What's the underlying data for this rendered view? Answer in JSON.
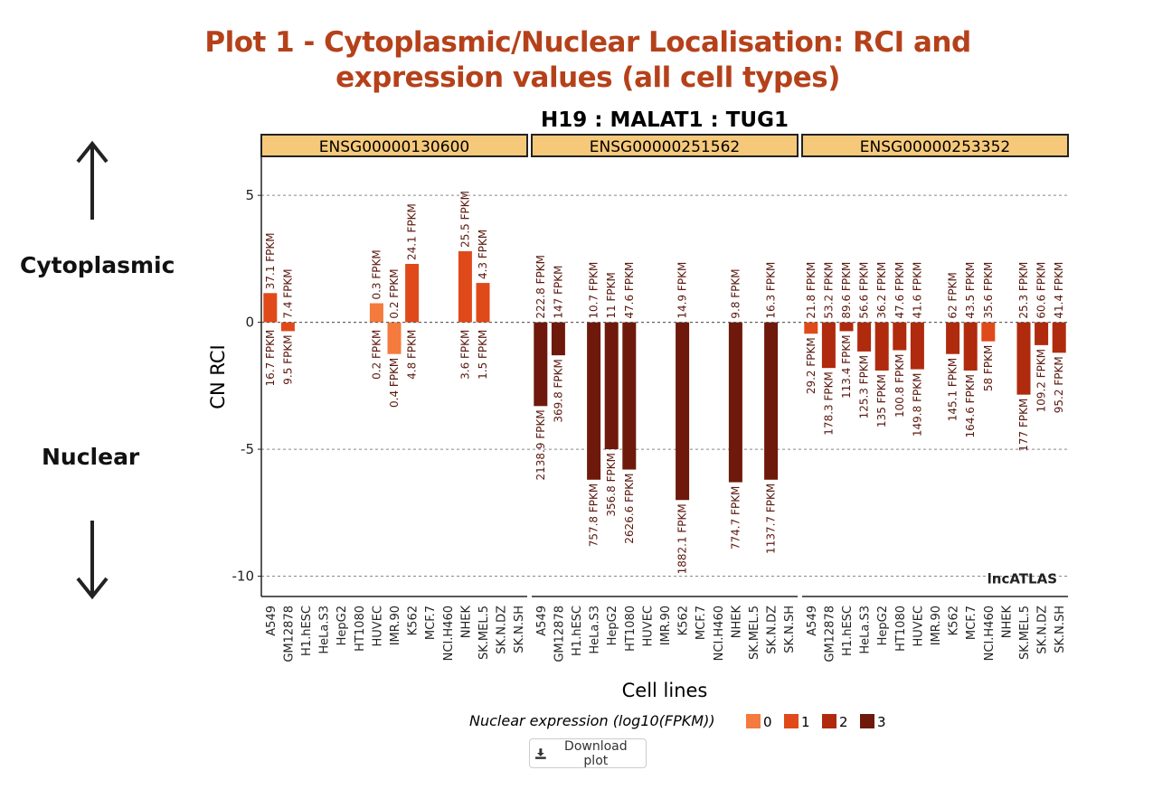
{
  "page": {
    "title_line1": "Plot 1 - Cytoplasmic/Nuclear Localisation: RCI and",
    "title_line2": "expression values (all cell types)",
    "cytoplasmic_label": "Cytoplasmic",
    "nuclear_label": "Nuclear",
    "download_label": "Download plot",
    "icons": {
      "up": "arrow-up-icon",
      "down": "arrow-down-icon",
      "download": "download-icon"
    }
  },
  "chart_data": {
    "type": "bar",
    "title": "H19 : MALAT1 : TUG1",
    "xlabel": "Cell lines",
    "ylabel": "CN RCI",
    "ylim": [
      -10.8,
      6.5
    ],
    "yticks": [
      5,
      0,
      -5,
      -10
    ],
    "grid": true,
    "watermark": "lncATLAS",
    "categories": [
      "A549",
      "GM12878",
      "H1.hESC",
      "HeLa.S3",
      "HepG2",
      "HT1080",
      "HUVEC",
      "IMR.90",
      "K562",
      "MCF.7",
      "NCI.H460",
      "NHEK",
      "SK.MEL.5",
      "SK.N.DZ",
      "SK.N.SH"
    ],
    "legend": {
      "title": "Nuclear expression (log10(FPKM))",
      "position": "bottom",
      "items": [
        {
          "label": "0",
          "color": "#f47a3d"
        },
        {
          "label": "1",
          "color": "#e04a1a"
        },
        {
          "label": "2",
          "color": "#b02a0e"
        },
        {
          "label": "3",
          "color": "#6e190b"
        }
      ]
    },
    "facets": [
      {
        "name": "ENSG00000130600",
        "values": [
          1.15,
          -0.35,
          null,
          null,
          null,
          null,
          0.75,
          -1.25,
          2.3,
          null,
          null,
          2.8,
          1.55,
          null,
          null
        ],
        "cyto": [
          "37.1 FPKM",
          "7.4 FPKM",
          null,
          null,
          null,
          null,
          "0.3 FPKM",
          "0.2 FPKM",
          "24.1 FPKM",
          null,
          null,
          "25.5 FPKM",
          "4.3 FPKM",
          null,
          null
        ],
        "nuc": [
          "16.7 FPKM",
          "9.5 FPKM",
          null,
          null,
          null,
          null,
          "0.2 FPKM",
          "0.4 FPKM",
          "4.8 FPKM",
          null,
          null,
          "3.6 FPKM",
          "1.5 FPKM",
          null,
          null
        ],
        "level": [
          1,
          1,
          null,
          null,
          null,
          null,
          0,
          0,
          1,
          null,
          null,
          1,
          1,
          null,
          null
        ]
      },
      {
        "name": "ENSG00000251562",
        "values": [
          -3.3,
          -1.3,
          null,
          -6.2,
          -5.0,
          -5.8,
          null,
          null,
          -7.0,
          null,
          null,
          -6.3,
          null,
          -6.2,
          null
        ],
        "cyto": [
          "222.8 FPKM",
          "147 FPKM",
          null,
          "10.7 FPKM",
          "11 FPKM",
          "47.6 FPKM",
          null,
          null,
          "14.9 FPKM",
          null,
          null,
          "9.8 FPKM",
          null,
          "16.3 FPKM",
          null
        ],
        "nuc": [
          "2138.9 FPKM",
          "369.8 FPKM",
          null,
          "757.8 FPKM",
          "356.8 FPKM",
          "2626.6 FPKM",
          null,
          null,
          "1882.1 FPKM",
          null,
          null,
          "774.7 FPKM",
          null,
          "1137.7 FPKM",
          null
        ],
        "level": [
          3,
          3,
          null,
          3,
          3,
          3,
          null,
          null,
          3,
          null,
          null,
          3,
          null,
          3,
          null
        ]
      },
      {
        "name": "ENSG00000253352",
        "values": [
          -0.45,
          -1.8,
          -0.35,
          -1.15,
          -1.9,
          -1.1,
          -1.85,
          null,
          -1.25,
          -1.9,
          -0.75,
          null,
          -2.85,
          -0.9,
          -1.2
        ],
        "cyto": [
          "21.8 FPKM",
          "53.2 FPKM",
          "89.6 FPKM",
          "56.6 FPKM",
          "36.2 FPKM",
          "47.6 FPKM",
          "41.6 FPKM",
          null,
          "62 FPKM",
          "43.5 FPKM",
          "35.6 FPKM",
          null,
          "25.3 FPKM",
          "60.6 FPKM",
          "41.4 FPKM"
        ],
        "nuc": [
          "29.2 FPKM",
          "178.3 FPKM",
          "113.4 FPKM",
          "125.3 FPKM",
          "135 FPKM",
          "100.8 FPKM",
          "149.8 FPKM",
          null,
          "145.1 FPKM",
          "164.6 FPKM",
          "58 FPKM",
          null,
          "177 FPKM",
          "109.2 FPKM",
          "95.2 FPKM"
        ],
        "level": [
          1,
          2,
          2,
          2,
          2,
          2,
          2,
          null,
          2,
          2,
          1,
          null,
          2,
          2,
          2
        ]
      }
    ]
  }
}
